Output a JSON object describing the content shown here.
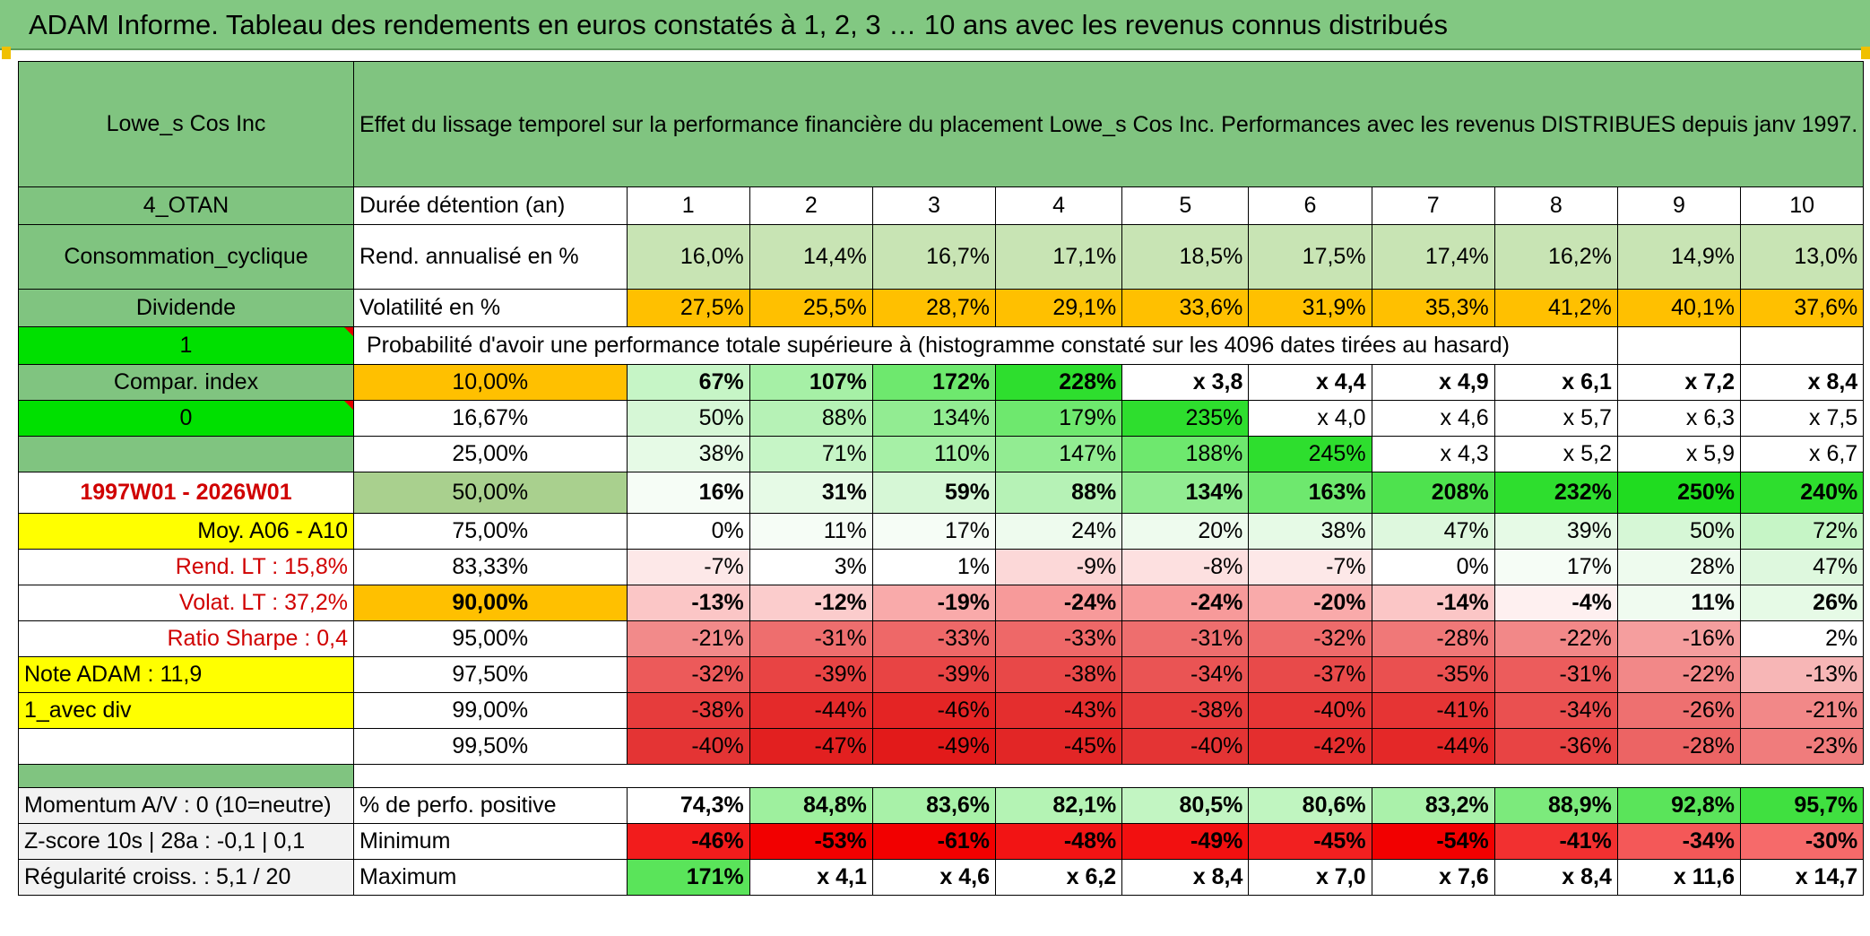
{
  "title": "ADAM Informe. Tableau des rendements en euros constatés à 1, 2, 3 … 10 ans avec les revenus connus distribués",
  "header": {
    "name": "Lowe_s Cos Inc",
    "description": "Effet du lissage temporel sur la performance financière du placement Lowe_s Cos Inc. Performances avec les revenus DISTRIBUES depuis janv 1997."
  },
  "left_labels": {
    "sector_code": "4_OTAN",
    "sector": "Consommation_cyclique",
    "income_type": "Dividende",
    "flag_1": "1",
    "compar_index": "Compar. index",
    "flag_0": "0",
    "empty": "",
    "period": "1997W01 - 2026W01",
    "moy": "Moy. A06 - A10",
    "rend_lt": "Rend. LT :    15,8%",
    "volat_lt": "Volat. LT :    37,2%",
    "sharpe": "Ratio Sharpe :    0,4",
    "note": "Note ADAM : 11,9",
    "avec_div": "1_avec div",
    "momentum": "Momentum A/V : 0 (10=neutre)",
    "zscore": "Z-score 10s | 28a : -0,1 | 0,1",
    "regularite": "Régularité croiss. : 5,1 / 20"
  },
  "duration_label": "Durée détention (an)",
  "years": [
    "1",
    "2",
    "3",
    "4",
    "5",
    "6",
    "7",
    "8",
    "9",
    "10"
  ],
  "returns": {
    "label": "Rend. annualisé en %",
    "values": [
      "16,0%",
      "14,4%",
      "16,7%",
      "17,1%",
      "18,5%",
      "17,5%",
      "17,4%",
      "16,2%",
      "14,9%",
      "13,0%"
    ]
  },
  "volatility": {
    "label": "Volatilité en %",
    "values": [
      "27,5%",
      "25,5%",
      "28,7%",
      "29,1%",
      "33,6%",
      "31,9%",
      "35,3%",
      "41,2%",
      "40,1%",
      "37,6%"
    ]
  },
  "probability_heading": "Probabilité d'avoir une performance totale supérieure à (histogramme constaté sur les 4096 dates tirées au hasard)",
  "percentile_rows": [
    {
      "pct": "10,00%",
      "cells": [
        {
          "v": "67%",
          "c": "#c6f5c6"
        },
        {
          "v": "107%",
          "c": "#a6f0a6"
        },
        {
          "v": "172%",
          "c": "#6ee86e"
        },
        {
          "v": "228%",
          "c": "#2ede2e"
        },
        {
          "v": "x 3,8",
          "c": "#ffffff"
        },
        {
          "v": "x 4,4",
          "c": "#ffffff"
        },
        {
          "v": "x 4,9",
          "c": "#ffffff"
        },
        {
          "v": "x 6,1",
          "c": "#ffffff"
        },
        {
          "v": "x 7,2",
          "c": "#ffffff"
        },
        {
          "v": "x 8,4",
          "c": "#ffffff"
        }
      ]
    },
    {
      "pct": "16,67%",
      "cells": [
        {
          "v": "50%",
          "c": "#d6f7d6"
        },
        {
          "v": "88%",
          "c": "#b6f2b6"
        },
        {
          "v": "134%",
          "c": "#92ec92"
        },
        {
          "v": "179%",
          "c": "#6ee86e"
        },
        {
          "v": "235%",
          "c": "#2ede2e"
        },
        {
          "v": "x 4,0",
          "c": "#ffffff"
        },
        {
          "v": "x 4,6",
          "c": "#ffffff"
        },
        {
          "v": "x 5,7",
          "c": "#ffffff"
        },
        {
          "v": "x 6,3",
          "c": "#ffffff"
        },
        {
          "v": "x 7,5",
          "c": "#ffffff"
        }
      ]
    },
    {
      "pct": "25,00%",
      "cells": [
        {
          "v": "38%",
          "c": "#e6fae6"
        },
        {
          "v": "71%",
          "c": "#c6f5c6"
        },
        {
          "v": "110%",
          "c": "#a6f0a6"
        },
        {
          "v": "147%",
          "c": "#92ec92"
        },
        {
          "v": "188%",
          "c": "#6ee86e"
        },
        {
          "v": "245%",
          "c": "#2ede2e"
        },
        {
          "v": "x 4,3",
          "c": "#ffffff"
        },
        {
          "v": "x 5,2",
          "c": "#ffffff"
        },
        {
          "v": "x 5,9",
          "c": "#ffffff"
        },
        {
          "v": "x 6,7",
          "c": "#ffffff"
        }
      ]
    },
    {
      "pct": "50,00%",
      "cells": [
        {
          "v": "16%",
          "c": "#f6fdf6"
        },
        {
          "v": "31%",
          "c": "#e6fae6"
        },
        {
          "v": "59%",
          "c": "#d6f7d6"
        },
        {
          "v": "88%",
          "c": "#b6f2b6"
        },
        {
          "v": "134%",
          "c": "#92ec92"
        },
        {
          "v": "163%",
          "c": "#6ee86e"
        },
        {
          "v": "208%",
          "c": "#4ee24e"
        },
        {
          "v": "232%",
          "c": "#2ede2e"
        },
        {
          "v": "250%",
          "c": "#20dc20"
        },
        {
          "v": "240%",
          "c": "#2ede2e"
        }
      ]
    },
    {
      "pct": "75,00%",
      "cells": [
        {
          "v": "0%",
          "c": "#ffffff"
        },
        {
          "v": "11%",
          "c": "#f6fdf6"
        },
        {
          "v": "17%",
          "c": "#f6fdf6"
        },
        {
          "v": "24%",
          "c": "#eefbee"
        },
        {
          "v": "20%",
          "c": "#eefbee"
        },
        {
          "v": "38%",
          "c": "#e6fae6"
        },
        {
          "v": "47%",
          "c": "#def8de"
        },
        {
          "v": "39%",
          "c": "#e6fae6"
        },
        {
          "v": "50%",
          "c": "#d6f7d6"
        },
        {
          "v": "72%",
          "c": "#c6f5c6"
        }
      ]
    },
    {
      "pct": "83,33%",
      "cells": [
        {
          "v": "-7%",
          "c": "#fde8e8"
        },
        {
          "v": "3%",
          "c": "#ffffff"
        },
        {
          "v": "1%",
          "c": "#ffffff"
        },
        {
          "v": "-9%",
          "c": "#fcd8d8"
        },
        {
          "v": "-8%",
          "c": "#fde0e0"
        },
        {
          "v": "-7%",
          "c": "#fde8e8"
        },
        {
          "v": "0%",
          "c": "#ffffff"
        },
        {
          "v": "17%",
          "c": "#f6fdf6"
        },
        {
          "v": "28%",
          "c": "#eefbee"
        },
        {
          "v": "47%",
          "c": "#def8de"
        }
      ]
    },
    {
      "pct": "90,00%",
      "cells": [
        {
          "v": "-13%",
          "c": "#fbc6c6"
        },
        {
          "v": "-12%",
          "c": "#fbcccc"
        },
        {
          "v": "-19%",
          "c": "#f9aaaa"
        },
        {
          "v": "-24%",
          "c": "#f79a9a"
        },
        {
          "v": "-24%",
          "c": "#f79a9a"
        },
        {
          "v": "-20%",
          "c": "#f9aaaa"
        },
        {
          "v": "-14%",
          "c": "#fbc6c6"
        },
        {
          "v": "-4%",
          "c": "#fef0f0"
        },
        {
          "v": "11%",
          "c": "#f0fbf0"
        },
        {
          "v": "26%",
          "c": "#e6fae6"
        }
      ]
    },
    {
      "pct": "95,00%",
      "cells": [
        {
          "v": "-21%",
          "c": "#f28a8a"
        },
        {
          "v": "-31%",
          "c": "#ee6e6e"
        },
        {
          "v": "-33%",
          "c": "#ee6868"
        },
        {
          "v": "-33%",
          "c": "#ee6868"
        },
        {
          "v": "-31%",
          "c": "#ee6e6e"
        },
        {
          "v": "-32%",
          "c": "#ee6b6b"
        },
        {
          "v": "-28%",
          "c": "#f07878"
        },
        {
          "v": "-22%",
          "c": "#f28888"
        },
        {
          "v": "-16%",
          "c": "#f59e9e"
        },
        {
          "v": "2%",
          "c": "#ffffff"
        }
      ]
    },
    {
      "pct": "97,50%",
      "cells": [
        {
          "v": "-32%",
          "c": "#ec5a5a"
        },
        {
          "v": "-39%",
          "c": "#e84444"
        },
        {
          "v": "-39%",
          "c": "#e84444"
        },
        {
          "v": "-38%",
          "c": "#e84848"
        },
        {
          "v": "-34%",
          "c": "#ea5454"
        },
        {
          "v": "-37%",
          "c": "#e84a4a"
        },
        {
          "v": "-35%",
          "c": "#ea5050"
        },
        {
          "v": "-31%",
          "c": "#ec5c5c"
        },
        {
          "v": "-22%",
          "c": "#f28888"
        },
        {
          "v": "-13%",
          "c": "#f7b6b6"
        }
      ]
    },
    {
      "pct": "99,00%",
      "cells": [
        {
          "v": "-38%",
          "c": "#e63c3c"
        },
        {
          "v": "-44%",
          "c": "#e42a2a"
        },
        {
          "v": "-46%",
          "c": "#e42424"
        },
        {
          "v": "-43%",
          "c": "#e42e2e"
        },
        {
          "v": "-38%",
          "c": "#e63c3c"
        },
        {
          "v": "-40%",
          "c": "#e63636"
        },
        {
          "v": "-41%",
          "c": "#e63434"
        },
        {
          "v": "-34%",
          "c": "#ea5050"
        },
        {
          "v": "-26%",
          "c": "#ee7070"
        },
        {
          "v": "-21%",
          "c": "#f28888"
        }
      ]
    },
    {
      "pct": "99,50%",
      "cells": [
        {
          "v": "-40%",
          "c": "#e43434"
        },
        {
          "v": "-47%",
          "c": "#e22020"
        },
        {
          "v": "-49%",
          "c": "#e21a1a"
        },
        {
          "v": "-45%",
          "c": "#e22626"
        },
        {
          "v": "-40%",
          "c": "#e43434"
        },
        {
          "v": "-42%",
          "c": "#e42e2e"
        },
        {
          "v": "-44%",
          "c": "#e42828"
        },
        {
          "v": "-36%",
          "c": "#e84444"
        },
        {
          "v": "-28%",
          "c": "#ec6464"
        },
        {
          "v": "-23%",
          "c": "#f07c7c"
        }
      ]
    }
  ],
  "stats": [
    {
      "label": "% de perfo. positive",
      "cells": [
        {
          "v": "74,3%",
          "c": "#ffffff"
        },
        {
          "v": "84,8%",
          "c": "#9ef09e"
        },
        {
          "v": "83,6%",
          "c": "#a8f1a8"
        },
        {
          "v": "82,1%",
          "c": "#b4f3b4"
        },
        {
          "v": "80,5%",
          "c": "#c2f5c2"
        },
        {
          "v": "80,6%",
          "c": "#c0f5c0"
        },
        {
          "v": "83,2%",
          "c": "#aaf1aa"
        },
        {
          "v": "88,9%",
          "c": "#7cea7c"
        },
        {
          "v": "92,8%",
          "c": "#5ae45a"
        },
        {
          "v": "95,7%",
          "c": "#40e040"
        }
      ]
    },
    {
      "label": "Minimum",
      "cells": [
        {
          "v": "-46%",
          "c": "#f21c1c"
        },
        {
          "v": "-53%",
          "c": "#f20000"
        },
        {
          "v": "-61%",
          "c": "#f20000"
        },
        {
          "v": "-48%",
          "c": "#f21414"
        },
        {
          "v": "-49%",
          "c": "#f21010"
        },
        {
          "v": "-45%",
          "c": "#f22020"
        },
        {
          "v": "-54%",
          "c": "#f20000"
        },
        {
          "v": "-41%",
          "c": "#f23030"
        },
        {
          "v": "-34%",
          "c": "#f45858"
        },
        {
          "v": "-30%",
          "c": "#f66a6a"
        }
      ]
    },
    {
      "label": "Maximum",
      "cells": [
        {
          "v": "171%",
          "c": "#5ae45a"
        },
        {
          "v": "x 4,1",
          "c": "#ffffff"
        },
        {
          "v": "x 4,6",
          "c": "#ffffff"
        },
        {
          "v": "x 6,2",
          "c": "#ffffff"
        },
        {
          "v": "x 8,4",
          "c": "#ffffff"
        },
        {
          "v": "x 7,0",
          "c": "#ffffff"
        },
        {
          "v": "x 7,6",
          "c": "#ffffff"
        },
        {
          "v": "x 8,4",
          "c": "#ffffff"
        },
        {
          "v": "x 11,6",
          "c": "#ffffff"
        },
        {
          "v": "x 14,7",
          "c": "#ffffff"
        }
      ]
    }
  ]
}
